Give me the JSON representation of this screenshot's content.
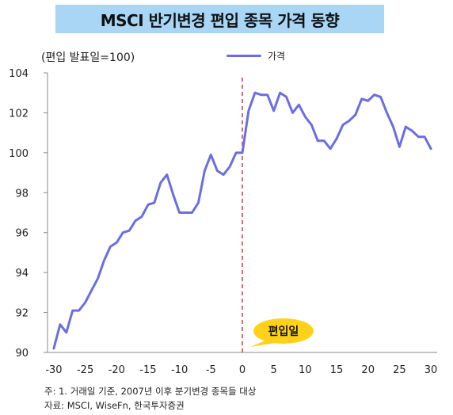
{
  "title": "MSCI 반기변경 편입 종목 가격 동향",
  "unit_label": "(편입 발표일=100)",
  "footnotes": {
    "note": "주: 1. 거래일 기준, 2007년 이후 분기변경 종목들 대상",
    "source": "자료: MSCI, WiseFn, 한국투자증권"
  },
  "colors": {
    "line": "#6a6ee0",
    "banner": "#a9d6f5",
    "event_line": "#e0304a",
    "callout": "#ffd11a"
  },
  "chart_data": {
    "type": "line",
    "title": "MSCI 반기변경 편입 종목 가격 동향",
    "ylabel": "(편입 발표일=100)",
    "xlim": [
      -31,
      31
    ],
    "ylim": [
      90,
      104
    ],
    "xticks": [
      -30,
      -25,
      -20,
      -15,
      -10,
      -5,
      0,
      5,
      10,
      15,
      20,
      25,
      30
    ],
    "yticks": [
      90,
      92,
      94,
      96,
      98,
      100,
      102,
      104
    ],
    "grid": false,
    "legend": "top-center",
    "event_line": {
      "x": 0,
      "label": "편입일"
    },
    "series": [
      {
        "name": "가격",
        "x": [
          -30,
          -29,
          -28,
          -27,
          -26,
          -25,
          -24,
          -23,
          -22,
          -21,
          -20,
          -19,
          -18,
          -17,
          -16,
          -15,
          -14,
          -13,
          -12,
          -11,
          -10,
          -9,
          -8,
          -7,
          -6,
          -5,
          -4,
          -3,
          -2,
          -1,
          0,
          1,
          2,
          3,
          4,
          5,
          6,
          7,
          8,
          9,
          10,
          11,
          12,
          13,
          14,
          15,
          16,
          17,
          18,
          19,
          20,
          21,
          22,
          23,
          24,
          25,
          26,
          27,
          28,
          29,
          30
        ],
        "values": [
          90.2,
          91.4,
          91.0,
          92.1,
          92.1,
          92.5,
          93.1,
          93.7,
          94.6,
          95.3,
          95.5,
          96.0,
          96.1,
          96.6,
          96.8,
          97.4,
          97.5,
          98.5,
          98.9,
          97.9,
          97.0,
          97.0,
          97.0,
          97.5,
          99.1,
          99.9,
          99.1,
          98.9,
          99.3,
          100.0,
          100.0,
          102.1,
          103.0,
          102.9,
          102.9,
          102.1,
          103.0,
          102.8,
          102.0,
          102.4,
          101.8,
          101.4,
          100.6,
          100.6,
          100.2,
          100.7,
          101.4,
          101.6,
          101.9,
          102.7,
          102.6,
          102.9,
          102.8,
          102.0,
          101.3,
          100.3,
          101.3,
          101.1,
          100.8,
          100.8,
          100.2
        ]
      }
    ]
  }
}
